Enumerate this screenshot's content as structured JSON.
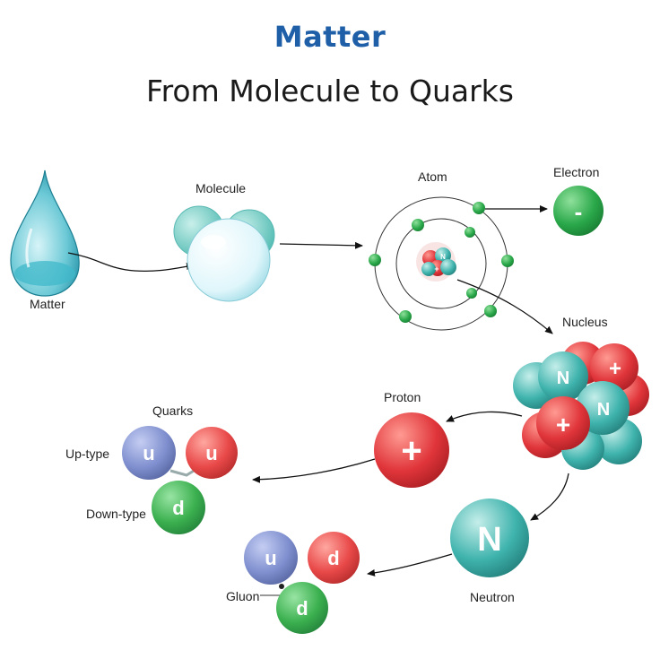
{
  "title": "Matter",
  "subtitle": "From Molecule to Quarks",
  "labels": {
    "matter": "Matter",
    "molecule": "Molecule",
    "atom": "Atom",
    "electron": "Electron",
    "nucleus": "Nucleus",
    "proton": "Proton",
    "neutron": "Neutron",
    "quarks": "Quarks",
    "up_type": "Up-type",
    "down_type": "Down-type",
    "gluon": "Gluon"
  },
  "glyphs": {
    "minus": "-",
    "plus": "+",
    "n": "N",
    "u": "u",
    "d": "d"
  },
  "colors": {
    "title": "#1f5fa8",
    "proton_red": "#e0353a",
    "neutron_teal": "#3fb3ad",
    "electron_green": "#2aa84a",
    "up_blue": "#7f8fcf",
    "quark_red": "#e84848",
    "down_green": "#3bb04f"
  }
}
